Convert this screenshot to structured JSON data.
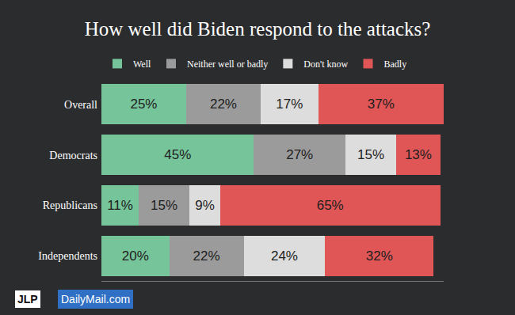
{
  "chart_data": {
    "type": "bar",
    "title": "How well did Biden respond to the attacks?",
    "orientation": "horizontal",
    "stacked": true,
    "data_labels": true,
    "tick_labels": "y",
    "grid": false,
    "legend": "top",
    "categories": [
      "Overall",
      "Democrats",
      "Republicans",
      "Independents"
    ],
    "xlim": [
      0,
      101
    ],
    "series": [
      {
        "name": "Well",
        "color": "#76c49a",
        "values": [
          25,
          45,
          11,
          20
        ],
        "value_labels": [
          "25%",
          "45%",
          "11%",
          "20%"
        ]
      },
      {
        "name": "Neither well or badly",
        "color": "#9b9b9b",
        "values": [
          22,
          27,
          15,
          22
        ],
        "value_labels": [
          "22%",
          "27%",
          "15%",
          "22%"
        ]
      },
      {
        "name": "Don't know",
        "color": "#dddddd",
        "values": [
          17,
          15,
          9,
          24
        ],
        "value_labels": [
          "17%",
          "15%",
          "9%",
          "24%"
        ]
      },
      {
        "name": "Badly",
        "color": "#e05656",
        "values": [
          37,
          13,
          65,
          32
        ],
        "value_labels": [
          "37%",
          "13%",
          "65%",
          "32%"
        ]
      }
    ],
    "annotations": [
      "JLP",
      "DailyMail.com"
    ]
  }
}
